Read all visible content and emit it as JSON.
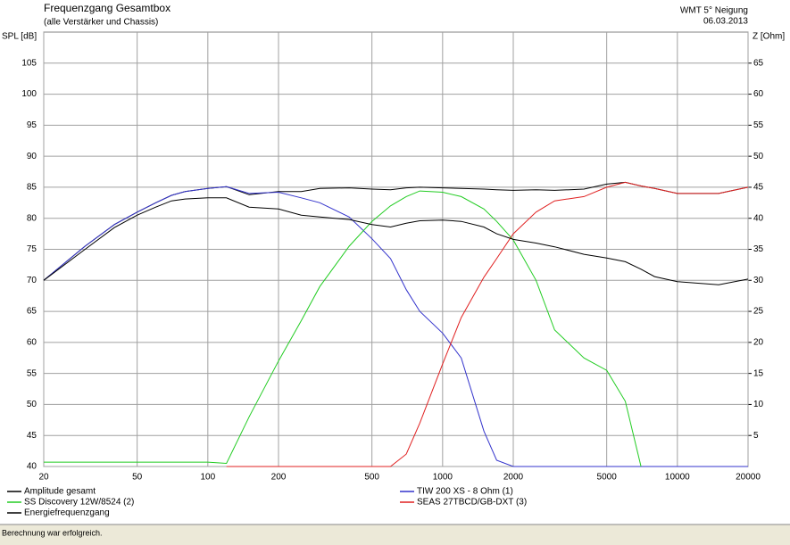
{
  "chart_data": {
    "type": "line",
    "title": "Frequenzgang Gesamtbox",
    "subtitle": "(alle Verstärker und Chassis)",
    "annotations": [
      "WMT 5° Neigung",
      "06.03.2013"
    ],
    "y_label": "SPL [dB]",
    "y2_label": "Z [Ohm]",
    "status": "Berechnung war erfolgreich.",
    "log_x": true,
    "grid": true,
    "legend": "bottom",
    "x": [
      20,
      30,
      40,
      50,
      60,
      70,
      80,
      100,
      120,
      150,
      200,
      250,
      300,
      400,
      500,
      600,
      700,
      800,
      1000,
      1200,
      1500,
      1700,
      2000,
      2500,
      3000,
      4000,
      5000,
      6000,
      7000,
      8000,
      10000,
      15000,
      20000
    ],
    "xlim": [
      20,
      20000
    ],
    "xticks": [
      20,
      50,
      100,
      200,
      500,
      1000,
      2000,
      5000,
      10000,
      20000
    ],
    "ylim": [
      40,
      110
    ],
    "yticks": [
      40,
      45,
      50,
      55,
      60,
      65,
      70,
      75,
      80,
      85,
      90,
      95,
      100,
      105
    ],
    "y2lim": [
      0,
      70
    ],
    "y2ticks": [
      5,
      10,
      15,
      20,
      25,
      30,
      35,
      40,
      45,
      50,
      55,
      60,
      65
    ],
    "series": [
      {
        "name": "Amplitude gesamt",
        "color": "#000000",
        "values": [
          70,
          75.5,
          79,
          81,
          82.5,
          83.7,
          84.3,
          84.8,
          85.1,
          83.8,
          84.3,
          84.3,
          84.8,
          84.9,
          84.7,
          84.6,
          84.9,
          85,
          84.9,
          84.8,
          84.7,
          84.6,
          84.5,
          84.6,
          84.5,
          84.7,
          85.5,
          85.8,
          85.2,
          84.8,
          84,
          84,
          85
        ]
      },
      {
        "name": "TIW 200 XS - 8 Ohm (1)",
        "color": "#3333cc",
        "values": [
          70,
          75.5,
          79,
          81,
          82.5,
          83.7,
          84.3,
          84.8,
          85.1,
          84,
          84.2,
          83.3,
          82.5,
          80.2,
          76.7,
          73.5,
          68.5,
          65,
          61.5,
          57.5,
          45.7,
          41,
          40,
          40,
          40,
          40,
          40,
          40,
          40,
          40,
          40,
          40,
          40
        ]
      },
      {
        "name": "SS Discovery 12W/8524 (2)",
        "color": "#22cc22",
        "values": [
          40.7,
          40.7,
          40.7,
          40.7,
          40.7,
          40.7,
          40.7,
          40.7,
          40.5,
          48,
          57,
          63.5,
          69,
          75.5,
          79.5,
          82,
          83.5,
          84.4,
          84.2,
          83.5,
          81.5,
          79.5,
          76.5,
          70,
          62,
          57.5,
          55.5,
          50.5,
          40,
          null,
          null,
          null,
          null
        ]
      },
      {
        "name": "SEAS 27TBCD/GB-DXT (3)",
        "color": "#e02020",
        "values": [
          null,
          null,
          null,
          null,
          null,
          null,
          null,
          null,
          40,
          40,
          40,
          40,
          40,
          40,
          40,
          40,
          42,
          47,
          56.5,
          64,
          70.5,
          73.5,
          77.5,
          81,
          82.8,
          83.5,
          85,
          85.8,
          85.2,
          84.8,
          84,
          84,
          85
        ]
      },
      {
        "name": "Energiefrequenzgang",
        "color": "#000000",
        "values": [
          70,
          75,
          78.5,
          80.5,
          81.8,
          82.8,
          83.1,
          83.3,
          83.3,
          81.8,
          81.5,
          80.5,
          80.2,
          79.8,
          79,
          78.6,
          79.2,
          79.6,
          79.7,
          79.5,
          78.6,
          77.5,
          76.6,
          76,
          75.4,
          74.2,
          73.6,
          73,
          71.8,
          70.6,
          69.8,
          69.3,
          70.2
        ]
      }
    ]
  }
}
